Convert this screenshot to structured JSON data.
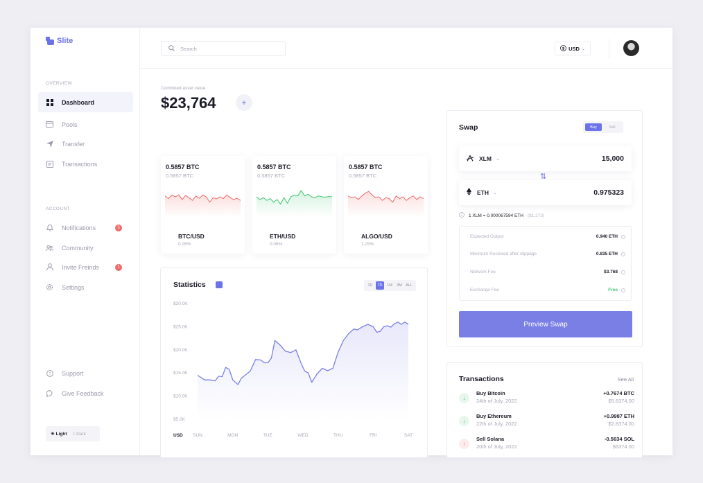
{
  "app": {
    "name": "Slite"
  },
  "colors": {
    "accent": "#6c73e8",
    "red": "#f06a6a",
    "green": "#3cc56f",
    "line": "#7a7fe6"
  },
  "sidebar": {
    "overview_label": "OVERVIEW",
    "overview_items": [
      {
        "label": "Dashboard",
        "icon": "grid-icon"
      },
      {
        "label": "Pools",
        "icon": "card-icon"
      },
      {
        "label": "Transfer",
        "icon": "send-icon"
      },
      {
        "label": "Transactions",
        "icon": "receipt-icon"
      }
    ],
    "account_label": "ACCOUNT",
    "account_items": [
      {
        "label": "Notifications",
        "icon": "bell-icon",
        "badge": "3"
      },
      {
        "label": "Community",
        "icon": "people-icon"
      },
      {
        "label": "Invite Freinds",
        "icon": "user-icon",
        "badge": "1"
      },
      {
        "label": "Settings",
        "icon": "gear-icon"
      }
    ],
    "bottom_items": [
      {
        "label": "Support",
        "icon": "help-icon"
      },
      {
        "label": "Give Feedback",
        "icon": "chat-icon"
      }
    ],
    "theme": {
      "light": "Light",
      "dark": "Dark"
    }
  },
  "topbar": {
    "search_placeholder": "Search",
    "currency": "USD"
  },
  "overview": {
    "label": "Combined asset value",
    "value": "$23,764",
    "add": "+"
  },
  "assets": [
    {
      "amount": "0.5857 BTC",
      "sub": "0.5857 BTC",
      "pair": "BTC/USD",
      "change": "0.26%",
      "trend": "red",
      "spark": [
        0.55,
        0.4,
        0.6,
        0.5,
        0.62,
        0.35,
        0.58,
        0.45,
        0.3,
        0.55,
        0.42,
        0.6,
        0.5,
        0.2,
        0.45,
        0.38,
        0.5,
        0.4,
        0.6,
        0.45,
        0.35,
        0.42,
        0.3
      ]
    },
    {
      "amount": "0.5857 BTC",
      "sub": "0.5857 BTC",
      "pair": "ETH/USD",
      "change": "0.06%",
      "trend": "green",
      "spark": [
        0.5,
        0.35,
        0.45,
        0.3,
        0.4,
        0.2,
        0.35,
        0.1,
        0.45,
        0.15,
        0.5,
        0.6,
        0.55,
        0.85,
        0.55,
        0.65,
        0.5,
        0.45,
        0.55,
        0.5,
        0.48,
        0.52,
        0.5
      ]
    },
    {
      "amount": "0.5857 BTC",
      "sub": "0.5857 BTC",
      "pair": "ALGO/USD",
      "change": "1.25%",
      "trend": "red",
      "spark": [
        0.55,
        0.45,
        0.5,
        0.35,
        0.55,
        0.7,
        0.8,
        0.6,
        0.45,
        0.5,
        0.3,
        0.45,
        0.4,
        0.2,
        0.55,
        0.4,
        0.5,
        0.3,
        0.45,
        0.55,
        0.35,
        0.5,
        0.4
      ]
    }
  ],
  "statistics": {
    "title": "Statistics",
    "ranges": [
      "1D",
      "7D",
      "1M",
      "3M",
      "ALL"
    ],
    "active_range": "7D"
  },
  "chart_data": {
    "type": "area",
    "categories": [
      "SUN",
      "MON",
      "TUE",
      "WED",
      "THU",
      "FRI",
      "SAT"
    ],
    "xlabel": "USD",
    "ylim": [
      5000,
      30000
    ],
    "yticks": [
      "$30.0K",
      "$25.0K",
      "$20.0K",
      "$15.0K",
      "$10.0K",
      "$5.0K"
    ],
    "x": [
      0,
      0.2,
      0.35,
      0.5,
      0.6,
      0.7,
      0.8,
      0.9,
      1.0,
      1.15,
      1.25,
      1.4,
      1.5,
      1.65,
      1.8,
      1.9,
      2.0,
      2.1,
      2.2,
      2.35,
      2.5,
      2.65,
      2.8,
      2.95,
      3.05,
      3.15,
      3.25,
      3.4,
      3.55,
      3.7,
      3.85,
      4.0,
      4.15,
      4.3,
      4.45,
      4.55,
      4.7,
      4.85,
      5.0,
      5.1,
      5.2,
      5.3,
      5.4,
      5.5,
      5.6,
      5.7,
      5.8,
      5.9,
      6.0
    ],
    "series": [
      {
        "values": [
          14500,
          13500,
          13500,
          13300,
          14300,
          14200,
          16200,
          15800,
          13500,
          12500,
          13900,
          14800,
          15400,
          17900,
          17800,
          17200,
          17200,
          18200,
          22000,
          21000,
          19700,
          19400,
          20000,
          17000,
          15400,
          15000,
          13000,
          14800,
          16000,
          15500,
          16000,
          19500,
          22000,
          23500,
          24500,
          24300,
          25000,
          25500,
          25000,
          23800,
          24000,
          25000,
          25200,
          24900,
          25600,
          26000,
          25500,
          26000,
          25500
        ]
      }
    ]
  },
  "swap": {
    "title": "Swap",
    "buy": "Buy",
    "sell": "Sell",
    "from": {
      "symbol": "XLM",
      "amount": "15,000"
    },
    "to": {
      "symbol": "ETH",
      "amount": "0.975323"
    },
    "rate": "1 XLM = 0.000067594 ETH",
    "rate_usd": "($1,273)",
    "fees": [
      {
        "label": "Expected Output",
        "value": "0.940 ETH"
      },
      {
        "label": "Minimum Recieved after slippage",
        "value": "0.835 ETH"
      },
      {
        "label": "Network Fee",
        "value": "$3.768"
      },
      {
        "label": "Exchange Fee",
        "value": "Free"
      }
    ],
    "button": "Preview Swap"
  },
  "transactions": {
    "title": "Transactions",
    "see_all": "See All",
    "items": [
      {
        "name": "Buy Bitcoin",
        "date": "24th of July, 2022",
        "value": "+0.7674 BTC",
        "usd": "$5,6374.00",
        "dir": "in"
      },
      {
        "name": "Buy Ethereum",
        "date": "22th of July, 2022",
        "value": "+0.9987 ETH",
        "usd": "$2,8374.00",
        "dir": "in"
      },
      {
        "name": "Sell Solana",
        "date": "20th of July, 2022",
        "value": "-0.5634 SOL",
        "usd": "$6374.00",
        "dir": "out"
      }
    ]
  }
}
